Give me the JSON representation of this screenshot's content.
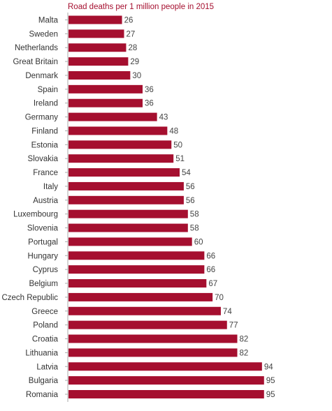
{
  "chart_data": {
    "type": "bar",
    "orientation": "horizontal",
    "title": "Road deaths per 1 million people in 2015",
    "categories": [
      "Malta",
      "Sweden",
      "Netherlands",
      "Great Britain",
      "Denmark",
      "Spain",
      "Ireland",
      "Germany",
      "Finland",
      "Estonia",
      "Slovakia",
      "France",
      "Italy",
      "Austria",
      "Luxembourg",
      "Slovenia",
      "Portugal",
      "Hungary",
      "Cyprus",
      "Belgium",
      "Czech Republic",
      "Greece",
      "Poland",
      "Croatia",
      "Lithuania",
      "Latvia",
      "Bulgaria",
      "Romania"
    ],
    "values": [
      26,
      27,
      28,
      29,
      30,
      36,
      36,
      43,
      48,
      50,
      51,
      54,
      56,
      56,
      58,
      58,
      60,
      66,
      66,
      67,
      70,
      74,
      77,
      82,
      82,
      94,
      95,
      95
    ],
    "xlabel": "",
    "ylabel": "",
    "xlim": [
      0,
      100
    ],
    "grid": false,
    "legend": "none",
    "colors": {
      "bar": "#a50f2f",
      "title": "#a50f2f",
      "axis": "#aaaaaa"
    }
  }
}
